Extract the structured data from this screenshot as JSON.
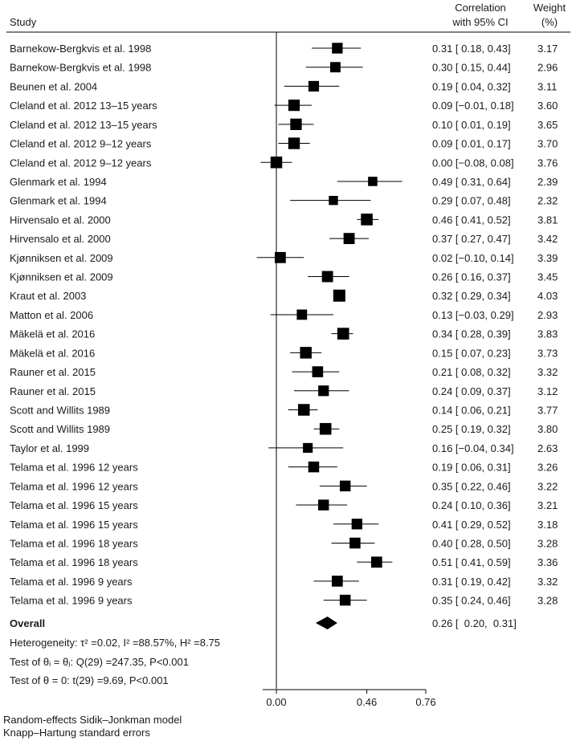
{
  "chart_data": {
    "type": "forest",
    "header": {
      "study": "Study",
      "ci_line1": "Correlation",
      "ci_line2": "with 95% CI",
      "weight_line1": "Weight",
      "weight_line2": "(%)"
    },
    "xlim": [
      -0.03,
      0.76
    ],
    "xticks": [
      {
        "value": 0.0,
        "label": "0.00"
      },
      {
        "value": 0.46,
        "label": "0.46"
      },
      {
        "value": 0.76,
        "label": "0.76"
      }
    ],
    "studies": [
      {
        "study": "Barnekow-Bergkvis et al. 1998",
        "est": 0.31,
        "lo": 0.18,
        "hi": 0.43,
        "ci_text": "0.31 [  0.18,  0.43]",
        "weight": "3.17"
      },
      {
        "study": "Barnekow-Bergkvis et al. 1998",
        "est": 0.3,
        "lo": 0.15,
        "hi": 0.44,
        "ci_text": "0.30 [  0.15,  0.44]",
        "weight": "2.96"
      },
      {
        "study": "Beunen et al. 2004",
        "est": 0.19,
        "lo": 0.04,
        "hi": 0.32,
        "ci_text": "0.19 [  0.04,  0.32]",
        "weight": "3.11"
      },
      {
        "study": "Cleland et al. 2012 13–15 years",
        "est": 0.09,
        "lo": -0.01,
        "hi": 0.18,
        "ci_text": "0.09 [−0.01,  0.18]",
        "weight": "3.60"
      },
      {
        "study": "Cleland et al. 2012 13–15 years",
        "est": 0.1,
        "lo": 0.01,
        "hi": 0.19,
        "ci_text": "0.10 [  0.01,  0.19]",
        "weight": "3.65"
      },
      {
        "study": "Cleland et al. 2012 9–12 years",
        "est": 0.09,
        "lo": 0.01,
        "hi": 0.17,
        "ci_text": "0.09 [  0.01,  0.17]",
        "weight": "3.70"
      },
      {
        "study": "Cleland et al. 2012 9–12 years",
        "est": 0.0,
        "lo": -0.08,
        "hi": 0.08,
        "ci_text": "0.00 [−0.08,  0.08]",
        "weight": "3.76"
      },
      {
        "study": "Glenmark et al. 1994",
        "est": 0.49,
        "lo": 0.31,
        "hi": 0.64,
        "ci_text": "0.49 [  0.31,  0.64]",
        "weight": "2.39"
      },
      {
        "study": "Glenmark et al. 1994",
        "est": 0.29,
        "lo": 0.07,
        "hi": 0.48,
        "ci_text": "0.29 [  0.07,  0.48]",
        "weight": "2.32"
      },
      {
        "study": "Hirvensalo et al. 2000",
        "est": 0.46,
        "lo": 0.41,
        "hi": 0.52,
        "ci_text": "0.46 [  0.41,  0.52]",
        "weight": "3.81"
      },
      {
        "study": "Hirvensalo et al. 2000",
        "est": 0.37,
        "lo": 0.27,
        "hi": 0.47,
        "ci_text": "0.37 [  0.27,  0.47]",
        "weight": "3.42"
      },
      {
        "study": "Kjønniksen et al. 2009",
        "est": 0.02,
        "lo": -0.1,
        "hi": 0.14,
        "ci_text": "0.02 [−0.10,  0.14]",
        "weight": "3.39"
      },
      {
        "study": "Kjønniksen et al. 2009",
        "est": 0.26,
        "lo": 0.16,
        "hi": 0.37,
        "ci_text": "0.26 [  0.16,  0.37]",
        "weight": "3.45"
      },
      {
        "study": "Kraut et al. 2003",
        "est": 0.32,
        "lo": 0.29,
        "hi": 0.34,
        "ci_text": "0.32 [  0.29,  0.34]",
        "weight": "4.03"
      },
      {
        "study": "Matton et al. 2006",
        "est": 0.13,
        "lo": -0.03,
        "hi": 0.29,
        "ci_text": "0.13 [−0.03,  0.29]",
        "weight": "2.93"
      },
      {
        "study": "Mäkelä et al. 2016",
        "est": 0.34,
        "lo": 0.28,
        "hi": 0.39,
        "ci_text": "0.34 [  0.28,  0.39]",
        "weight": "3.83"
      },
      {
        "study": "Mäkelä et al. 2016",
        "est": 0.15,
        "lo": 0.07,
        "hi": 0.23,
        "ci_text": "0.15 [  0.07,  0.23]",
        "weight": "3.73"
      },
      {
        "study": "Rauner et al. 2015",
        "est": 0.21,
        "lo": 0.08,
        "hi": 0.32,
        "ci_text": "0.21 [  0.08,  0.32]",
        "weight": "3.32"
      },
      {
        "study": "Rauner et al. 2015",
        "est": 0.24,
        "lo": 0.09,
        "hi": 0.37,
        "ci_text": "0.24 [  0.09,  0.37]",
        "weight": "3.12"
      },
      {
        "study": "Scott and Willits 1989",
        "est": 0.14,
        "lo": 0.06,
        "hi": 0.21,
        "ci_text": "0.14 [  0.06,  0.21]",
        "weight": "3.77"
      },
      {
        "study": "Scott and Willits 1989",
        "est": 0.25,
        "lo": 0.19,
        "hi": 0.32,
        "ci_text": "0.25 [  0.19,  0.32]",
        "weight": "3.80"
      },
      {
        "study": "Taylor et al. 1999",
        "est": 0.16,
        "lo": -0.04,
        "hi": 0.34,
        "ci_text": "0.16 [−0.04,  0.34]",
        "weight": "2.63"
      },
      {
        "study": "Telama et al. 1996 12 years",
        "est": 0.19,
        "lo": 0.06,
        "hi": 0.31,
        "ci_text": "0.19 [  0.06,  0.31]",
        "weight": "3.26"
      },
      {
        "study": "Telama et al. 1996 12 years",
        "est": 0.35,
        "lo": 0.22,
        "hi": 0.46,
        "ci_text": "0.35 [  0.22,  0.46]",
        "weight": "3.22"
      },
      {
        "study": "Telama et al. 1996 15 years",
        "est": 0.24,
        "lo": 0.1,
        "hi": 0.36,
        "ci_text": "0.24 [  0.10,  0.36]",
        "weight": "3.21"
      },
      {
        "study": "Telama et al. 1996 15 years",
        "est": 0.41,
        "lo": 0.29,
        "hi": 0.52,
        "ci_text": "0.41 [  0.29,  0.52]",
        "weight": "3.18"
      },
      {
        "study": "Telama et al. 1996 18 years",
        "est": 0.4,
        "lo": 0.28,
        "hi": 0.5,
        "ci_text": "0.40 [  0.28,  0.50]",
        "weight": "3.28"
      },
      {
        "study": "Telama et al. 1996 18 years",
        "est": 0.51,
        "lo": 0.41,
        "hi": 0.59,
        "ci_text": "0.51 [  0.41,  0.59]",
        "weight": "3.36"
      },
      {
        "study": "Telama et al. 1996 9 years",
        "est": 0.31,
        "lo": 0.19,
        "hi": 0.42,
        "ci_text": "0.31 [  0.19,  0.42]",
        "weight": "3.32"
      },
      {
        "study": "Telama et al. 1996 9 years",
        "est": 0.35,
        "lo": 0.24,
        "hi": 0.46,
        "ci_text": "0.35 [  0.24,  0.46]",
        "weight": "3.28"
      }
    ],
    "overall": {
      "label": "Overall",
      "est": 0.26,
      "lo": 0.2,
      "hi": 0.31,
      "ci_text": "0.26 [  0.20,  0.31]"
    },
    "heterogeneity": "Heterogeneity: τ² =0.02, I² =88.57%, H² =8.75",
    "test1": "Test of θᵢ = θⱼ: Q(29) =247.35, P<0.001",
    "test2": "Test of θ = 0: t(29) =9.69, P<0.001",
    "footnotes": [
      "Random-effects Sidik–Jonkman model",
      "Knapp–Hartung standard errors"
    ]
  }
}
